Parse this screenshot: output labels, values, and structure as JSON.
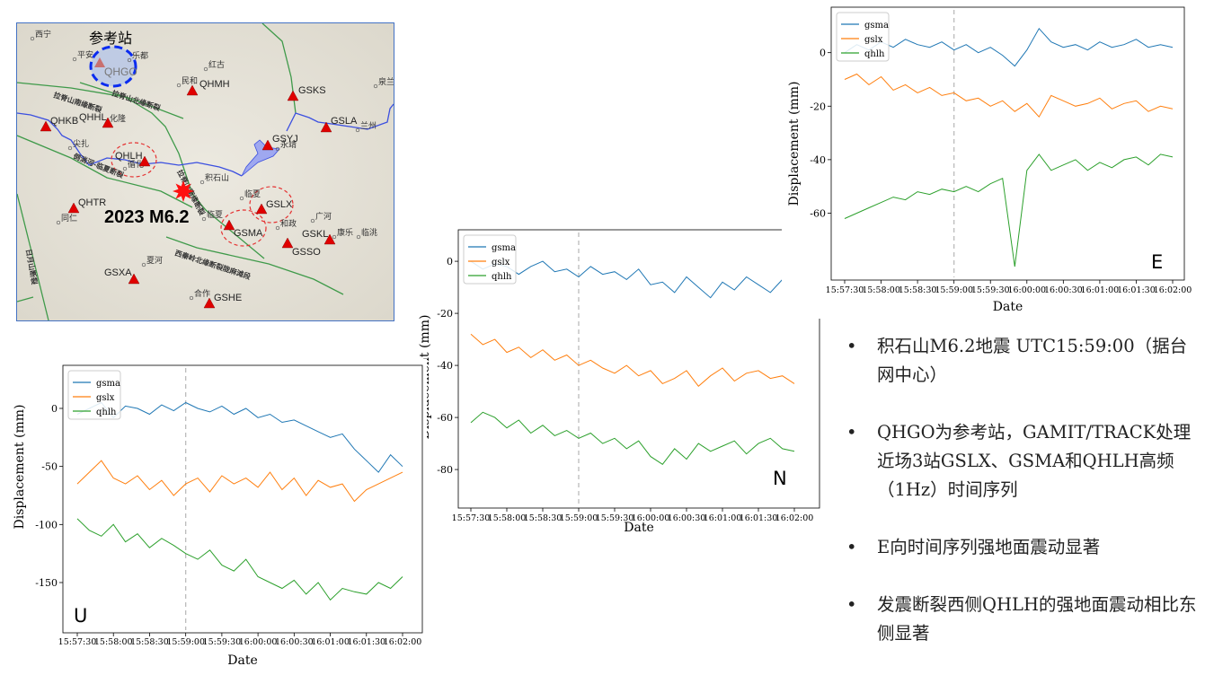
{
  "map": {
    "ref_label": "参考站",
    "quake_label": "2023 M6.2",
    "stations": [
      {
        "code": "QHGO",
        "reference": true
      },
      {
        "code": "QHMH"
      },
      {
        "code": "GSKS"
      },
      {
        "code": "GSLA"
      },
      {
        "code": "GSYJ"
      },
      {
        "code": "QHKB"
      },
      {
        "code": "QHHL"
      },
      {
        "code": "QHLH"
      },
      {
        "code": "QHTR"
      },
      {
        "code": "GSLX"
      },
      {
        "code": "GSMA"
      },
      {
        "code": "GSKL"
      },
      {
        "code": "GSSO"
      },
      {
        "code": "GSXA"
      },
      {
        "code": "GSHE"
      }
    ],
    "cities": [
      "西宁",
      "平安",
      "乐都",
      "红古",
      "泉兰",
      "兰州",
      "化隆",
      "尖扎",
      "循化",
      "永靖",
      "积石山",
      "临夏",
      "临夏",
      "同仁",
      "广河",
      "和政",
      "康乐",
      "临洮",
      "夏河",
      "民和",
      "合作"
    ],
    "faults": [
      "拉脊山南缘断裂",
      "拉脊山北缘断裂",
      "倒淌河-临夏断裂",
      "拉脊山南缘断裂",
      "西秦岭北缘断裂陇麻滩段",
      "日月山断裂"
    ]
  },
  "panel_letters": {
    "E": "E",
    "N": "N",
    "U": "U"
  },
  "bullets": [
    "积石山M6.2地震 UTC15:59:00（据台网中心）",
    "QHGO为参考站，GAMIT/TRACK处理近场3站GSLX、GSMA和QHLH高频（1Hz）时间序列",
    "E向时间序列强地面震动显著",
    "发震断裂西侧QHLH的强地面震动相比东侧显著"
  ],
  "chart_data": [
    {
      "type": "line",
      "component": "E",
      "xlabel": "Date",
      "ylabel": "Displacement (mm)",
      "x_ticks": [
        "15:57:30",
        "15:58:00",
        "15:58:30",
        "15:59:00",
        "15:59:30",
        "16:00:00",
        "16:00:30",
        "16:01:00",
        "16:01:30",
        "16:02:00"
      ],
      "x_sample_seconds": 10,
      "event_marker": "15:59:00",
      "ylim": [
        -85,
        17
      ],
      "y_ticks": [
        0,
        -20,
        -40,
        -60
      ],
      "legend": "top-left",
      "series": [
        {
          "name": "gsma",
          "color": "#1f77b4",
          "values": [
            0,
            3,
            1,
            4,
            2,
            5,
            3,
            2,
            4,
            1,
            3,
            0,
            2,
            -1,
            -5,
            1,
            9,
            4,
            2,
            3,
            1,
            4,
            2,
            3,
            5,
            2,
            3,
            2
          ]
        },
        {
          "name": "gslx",
          "color": "#ff7f0e",
          "values": [
            -10,
            -8,
            -12,
            -9,
            -14,
            -12,
            -15,
            -13,
            -16,
            -15,
            -18,
            -17,
            -20,
            -18,
            -22,
            -19,
            -24,
            -16,
            -18,
            -20,
            -19,
            -17,
            -21,
            -19,
            -18,
            -22,
            -20,
            -21
          ]
        },
        {
          "name": "qhlh",
          "color": "#2ca02c",
          "values": [
            -62,
            -60,
            -58,
            -56,
            -54,
            -55,
            -52,
            -53,
            -51,
            -52,
            -50,
            -52,
            -49,
            -47,
            -80,
            -44,
            -38,
            -44,
            -42,
            -40,
            -44,
            -41,
            -43,
            -40,
            -39,
            -42,
            -38,
            -39
          ]
        }
      ]
    },
    {
      "type": "line",
      "component": "N",
      "xlabel": "Date",
      "ylabel": "Displacement (mm)",
      "x_ticks": [
        "15:57:30",
        "15:58:00",
        "15:58:30",
        "15:59:00",
        "15:59:30",
        "16:00:00",
        "16:00:30",
        "16:01:00",
        "16:01:30",
        "16:02:00"
      ],
      "x_sample_seconds": 10,
      "event_marker": "15:59:00",
      "ylim": [
        -94.8,
        12.1
      ],
      "y_ticks": [
        0,
        -20,
        -40,
        -60,
        -80
      ],
      "legend": "top-left",
      "series": [
        {
          "name": "gsma",
          "color": "#1f77b4",
          "values": [
            0,
            -3,
            -1,
            -2,
            -5,
            -2,
            0,
            -4,
            -3,
            -6,
            -2,
            -5,
            -4,
            -7,
            -3,
            -9,
            -8,
            -12,
            -6,
            -10,
            -14,
            -8,
            -11,
            -6,
            -9,
            -12,
            -7,
            -3
          ]
        },
        {
          "name": "gslx",
          "color": "#ff7f0e",
          "values": [
            -28,
            -32,
            -30,
            -35,
            -33,
            -37,
            -34,
            -38,
            -36,
            -40,
            -38,
            -41,
            -43,
            -40,
            -44,
            -42,
            -47,
            -45,
            -42,
            -48,
            -44,
            -41,
            -46,
            -43,
            -42,
            -45,
            -44,
            -47
          ]
        },
        {
          "name": "qhlh",
          "color": "#2ca02c",
          "values": [
            -62,
            -58,
            -60,
            -64,
            -61,
            -66,
            -63,
            -67,
            -65,
            -68,
            -66,
            -70,
            -68,
            -72,
            -69,
            -75,
            -78,
            -72,
            -76,
            -70,
            -73,
            -71,
            -69,
            -74,
            -70,
            -68,
            -72,
            -73
          ]
        }
      ]
    },
    {
      "type": "line",
      "component": "U",
      "xlabel": "Date",
      "ylabel": "Displacement (mm)",
      "x_ticks": [
        "15:57:30",
        "15:58:00",
        "15:58:30",
        "15:59:00",
        "15:59:30",
        "16:00:00",
        "16:00:30",
        "16:01:00",
        "16:01:30",
        "16:02:00"
      ],
      "x_sample_seconds": 10,
      "event_marker": "15:59:00",
      "ylim": [
        -193.3,
        37.1
      ],
      "y_ticks": [
        0,
        -50,
        -100,
        -150
      ],
      "legend": "top-left",
      "series": [
        {
          "name": "gsma",
          "color": "#1f77b4",
          "values": [
            -5,
            0,
            5,
            -8,
            2,
            0,
            -5,
            3,
            -2,
            5,
            0,
            -3,
            2,
            -5,
            0,
            -8,
            -5,
            -12,
            -10,
            -15,
            -20,
            -25,
            -22,
            -35,
            -45,
            -55,
            -40,
            -50
          ]
        },
        {
          "name": "gslx",
          "color": "#ff7f0e",
          "values": [
            -65,
            -55,
            -45,
            -60,
            -65,
            -58,
            -70,
            -62,
            -75,
            -65,
            -60,
            -72,
            -58,
            -65,
            -60,
            -68,
            -55,
            -70,
            -60,
            -75,
            -62,
            -68,
            -65,
            -80,
            -70,
            -65,
            -60,
            -55
          ]
        },
        {
          "name": "qhlh",
          "color": "#2ca02c",
          "values": [
            -95,
            -105,
            -110,
            -100,
            -115,
            -108,
            -120,
            -112,
            -118,
            -125,
            -130,
            -122,
            -135,
            -140,
            -130,
            -145,
            -150,
            -155,
            -148,
            -160,
            -150,
            -165,
            -155,
            -158,
            -160,
            -150,
            -155,
            -145
          ]
        }
      ]
    }
  ]
}
